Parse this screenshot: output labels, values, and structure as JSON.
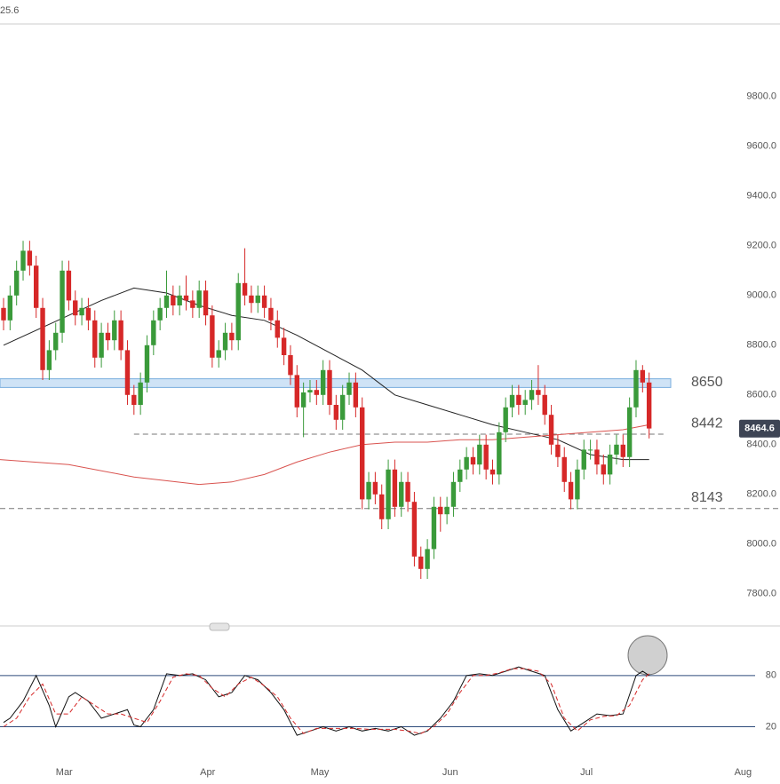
{
  "corner_text": "25.6",
  "chart_data": [
    {
      "type": "candlestick",
      "ylim": [
        7700,
        9900
      ],
      "yticks": [
        {
          "value": 9800,
          "label": "9800.0"
        },
        {
          "value": 9600,
          "label": "9600.0"
        },
        {
          "value": 9400,
          "label": "9400.0"
        },
        {
          "value": 9200,
          "label": "9200.0"
        },
        {
          "value": 9000,
          "label": "9000.0"
        },
        {
          "value": 8800,
          "label": "8800.0"
        },
        {
          "value": 8600,
          "label": "8600.0"
        },
        {
          "value": 8400,
          "label": "8400.0"
        },
        {
          "value": 8200,
          "label": "8200.0"
        },
        {
          "value": 8000,
          "label": "8000.0"
        },
        {
          "value": 7800,
          "label": "7800.0"
        }
      ],
      "xlim": [
        -0.5,
        119.1
      ],
      "xticks": [
        {
          "value": 9.3,
          "label": "Mar"
        },
        {
          "value": 31.3,
          "label": "Apr"
        },
        {
          "value": 48.5,
          "label": "May"
        },
        {
          "value": 68.5,
          "label": "Jun"
        },
        {
          "value": 89.4,
          "label": "Jul"
        },
        {
          "value": 113.4,
          "label": "Aug"
        }
      ],
      "up_color": "#3a9a3a",
      "down_color": "#d62828",
      "open": [
        8950,
        8900,
        9000,
        9100,
        9180,
        9120,
        8950,
        8700,
        8780,
        8850,
        9100,
        8980,
        8920,
        8950,
        8900,
        8750,
        8850,
        8820,
        8900,
        8780,
        8600,
        8560,
        8650,
        8800,
        8900,
        8950,
        9000,
        8960,
        9000,
        8980,
        8950,
        9020,
        8920,
        8750,
        8780,
        8850,
        8820,
        9050,
        9000,
        8970,
        9000,
        8950,
        8900,
        8830,
        8760,
        8680,
        8550,
        8610,
        8620,
        8600,
        8700,
        8560,
        8500,
        8600,
        8650,
        8550,
        8180,
        8250,
        8200,
        8100,
        8300,
        8150,
        8250,
        8170,
        7950,
        7900,
        7980,
        8150,
        8120,
        8150,
        8250,
        8300,
        8350,
        8320,
        8400,
        8300,
        8280,
        8450,
        8550,
        8600,
        8560,
        8580,
        8620,
        8600,
        8520,
        8400,
        8350,
        8250,
        8180,
        8300,
        8380,
        8380,
        8320,
        8280,
        8360,
        8400,
        8350,
        8550,
        8700,
        8650
      ],
      "high": [
        8990,
        9040,
        9140,
        9220,
        9220,
        9160,
        8990,
        8820,
        8890,
        9140,
        9140,
        9020,
        8990,
        8990,
        8940,
        8890,
        8890,
        8940,
        8940,
        8820,
        8640,
        8690,
        8840,
        8940,
        8990,
        9100,
        9040,
        9040,
        9080,
        9020,
        9060,
        9060,
        8960,
        8820,
        8890,
        8890,
        9090,
        9190,
        9040,
        9040,
        9040,
        8990,
        8940,
        8870,
        8800,
        8720,
        8650,
        8660,
        8660,
        8740,
        8740,
        8600,
        8640,
        8690,
        8690,
        8590,
        8290,
        8290,
        8240,
        8340,
        8340,
        8290,
        8290,
        8210,
        7990,
        8020,
        8190,
        8190,
        8190,
        8290,
        8340,
        8390,
        8390,
        8440,
        8440,
        8340,
        8490,
        8590,
        8640,
        8640,
        8620,
        8660,
        8720,
        8640,
        8560,
        8440,
        8390,
        8290,
        8340,
        8420,
        8420,
        8420,
        8360,
        8400,
        8440,
        8440,
        8590,
        8740,
        8720,
        8690
      ],
      "low": [
        8860,
        8860,
        8960,
        9060,
        9080,
        8910,
        8660,
        8660,
        8740,
        8810,
        8940,
        8880,
        8880,
        8860,
        8710,
        8710,
        8780,
        8780,
        8740,
        8560,
        8520,
        8520,
        8610,
        8760,
        8860,
        8910,
        8920,
        8920,
        8940,
        8910,
        8910,
        8880,
        8710,
        8710,
        8740,
        8780,
        8780,
        8960,
        8930,
        8930,
        8910,
        8860,
        8790,
        8720,
        8640,
        8510,
        8430,
        8570,
        8560,
        8560,
        8520,
        8460,
        8460,
        8560,
        8510,
        8140,
        8140,
        8160,
        8060,
        8060,
        8110,
        8110,
        8130,
        7910,
        7860,
        7860,
        7940,
        8050,
        8080,
        8110,
        8210,
        8260,
        8280,
        8280,
        8260,
        8240,
        8240,
        8410,
        8510,
        8520,
        8520,
        8540,
        8560,
        8480,
        8360,
        8310,
        8210,
        8140,
        8140,
        8260,
        8340,
        8280,
        8240,
        8240,
        8320,
        8310,
        8310,
        8510,
        8610,
        8425
      ],
      "close": [
        8900,
        9000,
        9100,
        9180,
        9120,
        8950,
        8700,
        8780,
        8850,
        9100,
        8980,
        8920,
        8950,
        8900,
        8750,
        8850,
        8820,
        8900,
        8780,
        8600,
        8560,
        8650,
        8800,
        8900,
        8950,
        9000,
        8960,
        9000,
        8980,
        8950,
        9020,
        8920,
        8750,
        8780,
        8850,
        8820,
        9050,
        9000,
        8970,
        9000,
        8950,
        8900,
        8830,
        8760,
        8680,
        8550,
        8610,
        8620,
        8600,
        8700,
        8560,
        8500,
        8600,
        8650,
        8550,
        8180,
        8250,
        8200,
        8100,
        8300,
        8150,
        8250,
        8170,
        7950,
        7900,
        7980,
        8150,
        8120,
        8150,
        8250,
        8300,
        8350,
        8320,
        8400,
        8300,
        8280,
        8450,
        8550,
        8600,
        8560,
        8580,
        8620,
        8600,
        8520,
        8400,
        8350,
        8250,
        8180,
        8300,
        8380,
        8380,
        8320,
        8280,
        8360,
        8400,
        8350,
        8550,
        8700,
        8650,
        8465
      ],
      "lines": [
        {
          "color": "#222222",
          "x": [
            0,
            10,
            15,
            20,
            25,
            30,
            35,
            40,
            45,
            50,
            55,
            60,
            65,
            70,
            75,
            80,
            85,
            90,
            95,
            99
          ],
          "values": [
            8800,
            8920,
            8980,
            9030,
            9010,
            8960,
            8920,
            8900,
            8840,
            8770,
            8700,
            8600,
            8560,
            8520,
            8480,
            8450,
            8420,
            8360,
            8340,
            8340
          ]
        },
        {
          "color": "#d9534f",
          "x": [
            -1,
            10,
            20,
            30,
            35,
            40,
            45,
            50,
            55,
            60,
            65,
            70,
            75,
            80,
            85,
            90,
            95,
            99
          ],
          "values": [
            8340,
            8320,
            8270,
            8240,
            8250,
            8280,
            8330,
            8370,
            8400,
            8410,
            8410,
            8420,
            8420,
            8430,
            8440,
            8450,
            8460,
            8480
          ]
        }
      ],
      "zone": {
        "low": 8630,
        "high": 8665,
        "color": "#cfe3f6",
        "label": 8650
      },
      "levels": [
        {
          "value": 8442,
          "label": 8442,
          "start": 20
        },
        {
          "value": 8143,
          "label": 8143,
          "start": -1
        }
      ],
      "last_price": 8464.6
    },
    {
      "type": "line",
      "ylim": [
        -5,
        110
      ],
      "yticks": [
        80,
        20
      ],
      "series": [
        {
          "color": "#111111",
          "dash": false,
          "x": [
            0,
            1,
            3,
            5,
            7,
            8,
            10,
            11,
            13,
            15,
            17,
            19,
            20,
            21,
            23,
            25,
            27,
            29,
            31,
            33,
            35,
            37,
            39,
            41,
            43,
            45,
            47,
            49,
            51,
            53,
            55,
            57,
            59,
            61,
            63,
            65,
            67,
            69,
            71,
            73,
            75,
            77,
            79,
            81,
            83,
            85,
            87,
            89,
            91,
            93,
            95,
            97,
            98,
            99
          ],
          "values": [
            25,
            30,
            50,
            80,
            45,
            20,
            55,
            60,
            50,
            30,
            35,
            40,
            22,
            20,
            40,
            82,
            80,
            82,
            75,
            55,
            60,
            80,
            75,
            60,
            40,
            10,
            15,
            20,
            15,
            20,
            15,
            18,
            15,
            20,
            10,
            15,
            30,
            50,
            80,
            82,
            80,
            85,
            90,
            85,
            80,
            40,
            15,
            25,
            35,
            33,
            35,
            80,
            85,
            80
          ]
        },
        {
          "color": "#d62828",
          "dash": true,
          "x": [
            0,
            2,
            4,
            6,
            8,
            10,
            12,
            14,
            16,
            18,
            20,
            22,
            24,
            26,
            28,
            30,
            32,
            34,
            36,
            38,
            40,
            42,
            44,
            46,
            48,
            50,
            52,
            54,
            56,
            58,
            60,
            62,
            64,
            66,
            68,
            70,
            72,
            74,
            76,
            78,
            80,
            82,
            84,
            86,
            88,
            90,
            92,
            94,
            96,
            98,
            99
          ],
          "values": [
            20,
            30,
            55,
            70,
            35,
            35,
            55,
            45,
            35,
            35,
            30,
            25,
            50,
            78,
            82,
            80,
            65,
            55,
            70,
            78,
            68,
            55,
            30,
            12,
            18,
            18,
            18,
            18,
            17,
            17,
            17,
            15,
            12,
            20,
            35,
            60,
            80,
            80,
            83,
            88,
            88,
            85,
            70,
            30,
            15,
            28,
            32,
            33,
            45,
            75,
            82
          ]
        }
      ]
    }
  ]
}
